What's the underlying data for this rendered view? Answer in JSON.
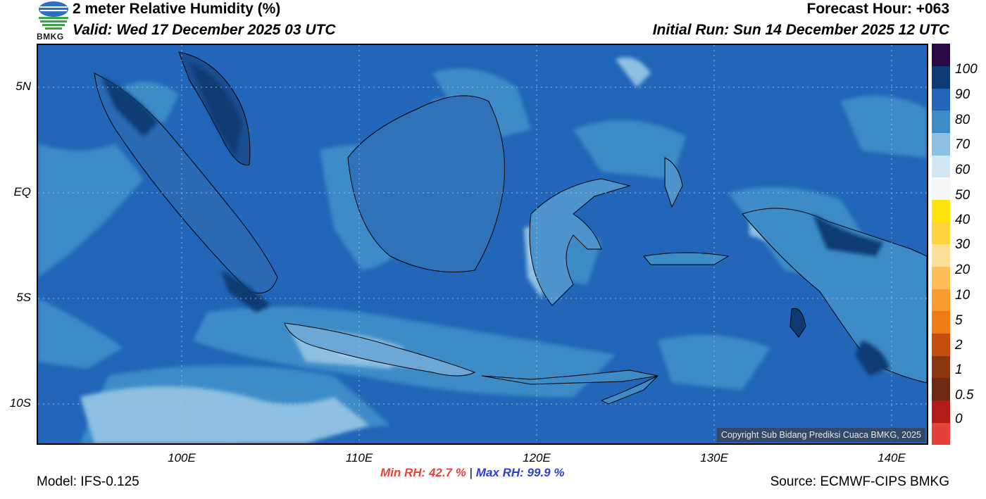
{
  "header": {
    "title": "2 meter Relative Humidity (%)",
    "valid": "Valid: Wed 17 December 2025 03 UTC",
    "forecast_hour": "Forecast Hour: +063",
    "initial_run": "Initial Run: Sun 14 December 2025 12 UTC",
    "logo_text": "BMKG"
  },
  "map": {
    "lat_labels": [
      "5N",
      "EQ",
      "5S",
      "10S"
    ],
    "lon_labels": [
      "100E",
      "110E",
      "120E",
      "130E",
      "140E"
    ],
    "copyright": "Copyright Sub Bidang Prediksi Cuaca BMKG, 2025",
    "colors": {
      "ocean_base": "#2166b8",
      "rh_80_90": "#2166b8",
      "rh_70_80": "#3d8cc8",
      "rh_60_70": "#8dc0e2",
      "rh_50_60": "#d2e6f3",
      "rh_90_100": "#0e3a72",
      "coast": "#000000",
      "border": "#9aa7b3"
    }
  },
  "colorbar": {
    "labels": [
      "100",
      "90",
      "80",
      "70",
      "60",
      "50",
      "40",
      "30",
      "20",
      "10",
      "5",
      "2",
      "1",
      "0.5",
      "0"
    ],
    "colors": [
      "#e8403a",
      "#b31b17",
      "#6e2a12",
      "#8a3510",
      "#c24d0e",
      "#ee7b13",
      "#f99b2d",
      "#fdbf55",
      "#fedf98",
      "#fed43a",
      "#fde30c",
      "#f7f7f7",
      "#d2e6f3",
      "#8dc0e2",
      "#3d8cc8",
      "#2166b8",
      "#0e3a72",
      "#2a0845"
    ]
  },
  "stats": {
    "min_label": "Min RH:",
    "min_value": "42.7 %",
    "separator": "|",
    "max_label": "Max RH:",
    "max_value": "99.9 %"
  },
  "footer": {
    "model": "Model: IFS-0.125",
    "source": "Source: ECMWF-CIPS BMKG"
  }
}
